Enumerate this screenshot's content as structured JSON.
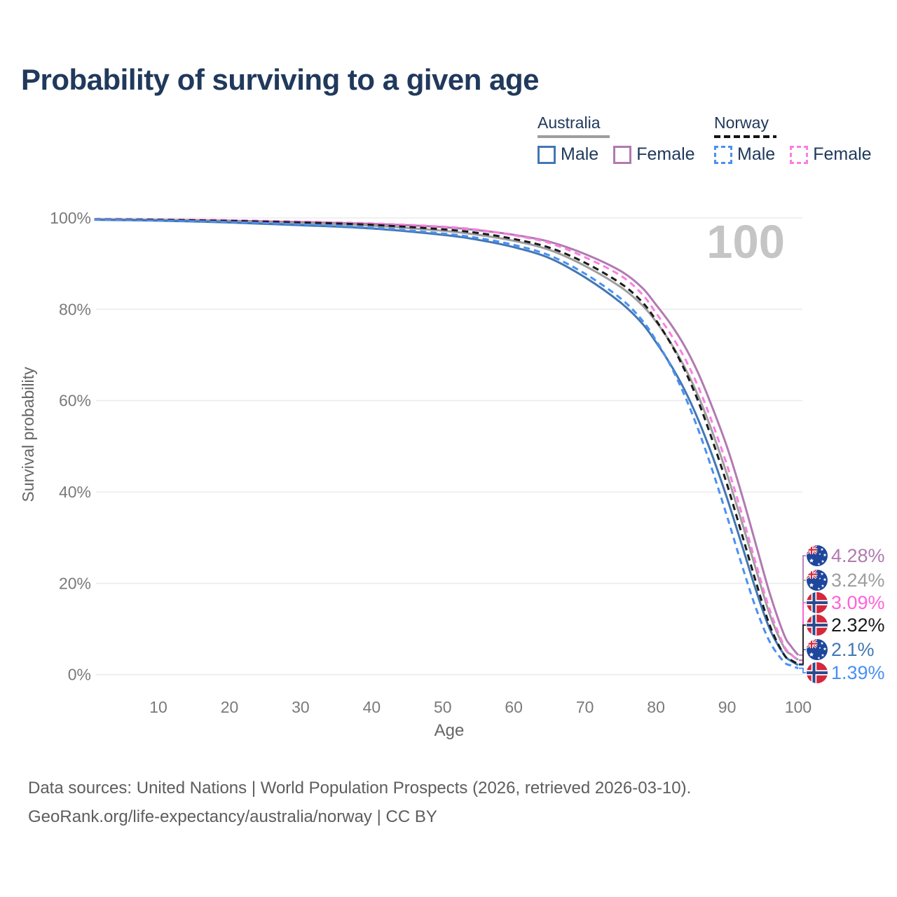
{
  "title": "Probability of surviving to a given age",
  "legend": {
    "groups": [
      {
        "country": "Australia",
        "underline_style": "solid",
        "underline_color": "#9e9e9e",
        "items": [
          {
            "label": "Male",
            "color": "#4277b4",
            "dashed": false
          },
          {
            "label": "Female",
            "color": "#b07ab0",
            "dashed": false
          }
        ]
      },
      {
        "country": "Norway",
        "underline_style": "dashed",
        "underline_color": "#141414",
        "items": [
          {
            "label": "Male",
            "color": "#4a90f2",
            "dashed": true
          },
          {
            "label": "Female",
            "color": "#fb7ee2",
            "dashed": true
          }
        ]
      }
    ]
  },
  "chart_data": {
    "type": "line",
    "xlabel": "Age",
    "ylabel": "Survival probability",
    "xlim": [
      0,
      103
    ],
    "ylim": [
      0,
      100
    ],
    "xticks": [
      10,
      20,
      30,
      40,
      50,
      60,
      70,
      80,
      90,
      100
    ],
    "yticks": [
      0,
      20,
      40,
      60,
      80,
      100
    ],
    "ytick_suffix": "%",
    "grid": "horizontal",
    "age_watermark": "100",
    "legend_position": "top-right",
    "series": [
      {
        "name": "Australia Female",
        "country": "Australia",
        "sex": "Female",
        "style": "solid",
        "color": "#b07ab0",
        "label_color": "#b07ab0",
        "end_value": 4.28,
        "end_label": "4.28%",
        "label_row": 0,
        "points": [
          [
            1,
            99.7
          ],
          [
            10,
            99.6
          ],
          [
            20,
            99.4
          ],
          [
            30,
            99.1
          ],
          [
            40,
            98.7
          ],
          [
            50,
            98.0
          ],
          [
            55,
            97.3
          ],
          [
            60,
            96.3
          ],
          [
            65,
            94.8
          ],
          [
            70,
            92.1
          ],
          [
            75,
            88.4
          ],
          [
            78,
            84.8
          ],
          [
            80,
            81.0
          ],
          [
            82,
            76.9
          ],
          [
            84,
            72.0
          ],
          [
            86,
            65.8
          ],
          [
            88,
            58.2
          ],
          [
            90,
            49.8
          ],
          [
            92,
            39.8
          ],
          [
            94,
            28.8
          ],
          [
            96,
            17.8
          ],
          [
            98,
            8.8
          ],
          [
            99,
            6.2
          ],
          [
            100,
            4.28
          ]
        ]
      },
      {
        "name": "Australia Both sexes",
        "country": "Australia",
        "sex": "Both",
        "style": "solid",
        "color": "#9e9e9e",
        "label_color": "#9e9e9e",
        "end_value": 3.24,
        "end_label": "3.24%",
        "label_row": 1,
        "points": [
          [
            1,
            99.65
          ],
          [
            10,
            99.5
          ],
          [
            20,
            99.2
          ],
          [
            30,
            98.8
          ],
          [
            40,
            98.3
          ],
          [
            50,
            97.2
          ],
          [
            55,
            96.3
          ],
          [
            60,
            95.0
          ],
          [
            65,
            93.0
          ],
          [
            70,
            89.5
          ],
          [
            75,
            84.9
          ],
          [
            78,
            81.0
          ],
          [
            80,
            77.3
          ],
          [
            82,
            72.8
          ],
          [
            84,
            67.4
          ],
          [
            86,
            60.8
          ],
          [
            88,
            52.8
          ],
          [
            90,
            43.8
          ],
          [
            92,
            33.8
          ],
          [
            94,
            23.4
          ],
          [
            96,
            13.2
          ],
          [
            98,
            6.0
          ],
          [
            99,
            4.4
          ],
          [
            100,
            3.24
          ]
        ]
      },
      {
        "name": "Australia Male",
        "country": "Australia",
        "sex": "Male",
        "style": "solid",
        "color": "#4277b4",
        "label_color": "#4277b4",
        "end_value": 2.1,
        "end_label": "2.1%",
        "label_row": 4,
        "points": [
          [
            1,
            99.6
          ],
          [
            10,
            99.4
          ],
          [
            20,
            99.0
          ],
          [
            30,
            98.4
          ],
          [
            40,
            97.7
          ],
          [
            50,
            96.3
          ],
          [
            55,
            95.2
          ],
          [
            60,
            93.6
          ],
          [
            65,
            91.2
          ],
          [
            70,
            87.0
          ],
          [
            75,
            81.5
          ],
          [
            78,
            77.0
          ],
          [
            80,
            72.8
          ],
          [
            82,
            68.0
          ],
          [
            84,
            62.4
          ],
          [
            86,
            55.6
          ],
          [
            88,
            47.6
          ],
          [
            90,
            38.6
          ],
          [
            92,
            28.8
          ],
          [
            94,
            18.8
          ],
          [
            96,
            10.0
          ],
          [
            98,
            4.4
          ],
          [
            99,
            3.0
          ],
          [
            100,
            2.1
          ]
        ]
      },
      {
        "name": "Norway Female",
        "country": "Norway",
        "sex": "Female",
        "style": "dashed",
        "color": "#fb7ee2",
        "label_color": "#ff62da",
        "end_value": 3.09,
        "end_label": "3.09%",
        "label_row": 2,
        "points": [
          [
            1,
            99.75
          ],
          [
            10,
            99.65
          ],
          [
            20,
            99.5
          ],
          [
            30,
            99.2
          ],
          [
            40,
            98.8
          ],
          [
            50,
            98.1
          ],
          [
            55,
            97.4
          ],
          [
            60,
            96.2
          ],
          [
            65,
            94.5
          ],
          [
            70,
            91.4
          ],
          [
            75,
            87.4
          ],
          [
            78,
            83.4
          ],
          [
            80,
            79.2
          ],
          [
            82,
            74.7
          ],
          [
            84,
            69.4
          ],
          [
            86,
            62.8
          ],
          [
            88,
            54.8
          ],
          [
            90,
            45.8
          ],
          [
            92,
            35.6
          ],
          [
            94,
            24.6
          ],
          [
            96,
            14.2
          ],
          [
            98,
            6.4
          ],
          [
            99,
            4.5
          ],
          [
            100,
            3.09
          ]
        ]
      },
      {
        "name": "Norway Both sexes",
        "country": "Norway",
        "sex": "Both",
        "style": "dashed",
        "color": "#1a1a1a",
        "label_color": "#1a1a1a",
        "end_value": 2.32,
        "end_label": "2.32%",
        "label_row": 3,
        "points": [
          [
            1,
            99.7
          ],
          [
            10,
            99.6
          ],
          [
            20,
            99.35
          ],
          [
            30,
            99.0
          ],
          [
            40,
            98.5
          ],
          [
            50,
            97.5
          ],
          [
            55,
            96.7
          ],
          [
            60,
            95.4
          ],
          [
            65,
            93.5
          ],
          [
            70,
            90.2
          ],
          [
            75,
            85.7
          ],
          [
            78,
            81.7
          ],
          [
            80,
            77.6
          ],
          [
            82,
            72.7
          ],
          [
            84,
            66.8
          ],
          [
            86,
            59.6
          ],
          [
            88,
            51.0
          ],
          [
            90,
            41.6
          ],
          [
            92,
            31.2
          ],
          [
            94,
            20.6
          ],
          [
            96,
            10.8
          ],
          [
            98,
            4.4
          ],
          [
            99,
            3.2
          ],
          [
            100,
            2.32
          ]
        ]
      },
      {
        "name": "Norway Male",
        "country": "Norway",
        "sex": "Male",
        "style": "dashed",
        "color": "#4a90f2",
        "label_color": "#4a90f2",
        "end_value": 1.39,
        "end_label": "1.39%",
        "label_row": 5,
        "points": [
          [
            1,
            99.65
          ],
          [
            10,
            99.45
          ],
          [
            20,
            99.1
          ],
          [
            30,
            98.6
          ],
          [
            40,
            97.9
          ],
          [
            50,
            96.6
          ],
          [
            55,
            95.6
          ],
          [
            60,
            94.1
          ],
          [
            65,
            91.8
          ],
          [
            70,
            87.8
          ],
          [
            75,
            82.4
          ],
          [
            78,
            77.7
          ],
          [
            80,
            73.2
          ],
          [
            82,
            67.8
          ],
          [
            84,
            61.2
          ],
          [
            86,
            53.4
          ],
          [
            88,
            44.4
          ],
          [
            90,
            34.6
          ],
          [
            92,
            24.4
          ],
          [
            94,
            14.8
          ],
          [
            96,
            7.2
          ],
          [
            98,
            2.8
          ],
          [
            99,
            2.0
          ],
          [
            100,
            1.39
          ]
        ]
      }
    ],
    "end_labels": [
      {
        "value": "4.28%",
        "flag": "australia",
        "color": "#b07ab0"
      },
      {
        "value": "3.24%",
        "flag": "australia",
        "color": "#9e9e9e"
      },
      {
        "value": "3.09%",
        "flag": "norway",
        "color": "#ff62da"
      },
      {
        "value": "2.32%",
        "flag": "norway",
        "color": "#1a1a1a"
      },
      {
        "value": "2.1%",
        "flag": "australia",
        "color": "#4277b4"
      },
      {
        "value": "1.39%",
        "flag": "norway",
        "color": "#4a90f2"
      }
    ]
  },
  "colors": {
    "title": "#20395c",
    "axis_text": "#7a7a7a",
    "axis_label": "#666666",
    "gridline": "#ececec",
    "watermark": "#c5c5c5",
    "footer": "#5d5d5d",
    "australia_flag_blue": "#1d469c",
    "norway_flag_red": "#d5283c",
    "norway_flag_navy": "#2a4a8e"
  },
  "footer": {
    "line1": "Data sources: United Nations | World Population Prospects (2026, retrieved 2026-03-10).",
    "line2": "GeoRank.org/life-expectancy/australia/norway | CC BY"
  }
}
